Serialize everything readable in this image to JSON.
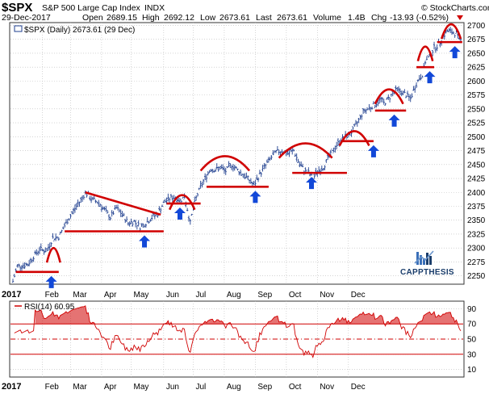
{
  "header": {
    "symbol": "$SPX",
    "name": "S&P 500 Large Cap Index",
    "exchange": "INDX",
    "watermark": "© StockCharts.com",
    "date": "29-Dec-2017",
    "open_label": "Open",
    "open": "2689.15",
    "high_label": "High",
    "high": "2692.12",
    "low_label": "Low",
    "low": "2673.61",
    "last_label": "Last",
    "last": "2673.61",
    "volume_label": "Volume",
    "volume": "1.4B",
    "chg_label": "Chg",
    "chg": "-13.93 (-0.52%)"
  },
  "legend_price": "$SPX (Daily) 2673.61 (29 Dec)",
  "legend_rsi": "RSI(14) 60.95",
  "logo_text": "CAPPTHESIS",
  "colors": {
    "line": "#d00000",
    "arrow": "#1248d8",
    "bars": "#1f3f8f",
    "grid": "#bbbbbb",
    "rsi_fill": "#d00000"
  },
  "chart_data": [
    {
      "type": "ohlc",
      "title": "$SPX (Daily)",
      "x_year_label": "2017",
      "months": [
        "Feb",
        "Mar",
        "Apr",
        "May",
        "Jun",
        "Jul",
        "Aug",
        "Sep",
        "Oct",
        "Nov",
        "Dec"
      ],
      "y_ticks": [
        2250,
        2275,
        2300,
        2325,
        2350,
        2375,
        2400,
        2425,
        2450,
        2475,
        2500,
        2525,
        2550,
        2575,
        2600,
        2625,
        2650,
        2675,
        2700
      ],
      "ylim": [
        2235,
        2705
      ],
      "anchors": [
        [
          0,
          2240
        ],
        [
          3,
          2268
        ],
        [
          10,
          2270
        ],
        [
          14,
          2285
        ],
        [
          18,
          2298
        ],
        [
          23,
          2295
        ],
        [
          27,
          2318
        ],
        [
          31,
          2320
        ],
        [
          35,
          2340
        ],
        [
          39,
          2358
        ],
        [
          43,
          2375
        ],
        [
          47,
          2390
        ],
        [
          49,
          2400
        ],
        [
          53,
          2388
        ],
        [
          58,
          2382
        ],
        [
          62,
          2368
        ],
        [
          66,
          2355
        ],
        [
          70,
          2372
        ],
        [
          74,
          2360
        ],
        [
          78,
          2345
        ],
        [
          82,
          2348
        ],
        [
          86,
          2338
        ],
        [
          90,
          2345
        ],
        [
          94,
          2355
        ],
        [
          98,
          2362
        ],
        [
          100,
          2372
        ],
        [
          103,
          2384
        ],
        [
          107,
          2390
        ],
        [
          110,
          2392
        ],
        [
          113,
          2385
        ],
        [
          116,
          2392
        ],
        [
          118,
          2370
        ],
        [
          120,
          2345
        ],
        [
          122,
          2372
        ],
        [
          124,
          2390
        ],
        [
          127,
          2410
        ],
        [
          131,
          2430
        ],
        [
          134,
          2443
        ],
        [
          137,
          2440
        ],
        [
          140,
          2445
        ],
        [
          144,
          2438
        ],
        [
          148,
          2450
        ],
        [
          152,
          2440
        ],
        [
          156,
          2432
        ],
        [
          160,
          2422
        ],
        [
          163,
          2412
        ],
        [
          166,
          2428
        ],
        [
          170,
          2445
        ],
        [
          174,
          2460
        ],
        [
          178,
          2472
        ],
        [
          182,
          2475
        ],
        [
          186,
          2470
        ],
        [
          190,
          2475
        ],
        [
          194,
          2450
        ],
        [
          197,
          2440
        ],
        [
          200,
          2435
        ],
        [
          203,
          2425
        ],
        [
          206,
          2438
        ],
        [
          210,
          2445
        ],
        [
          213,
          2460
        ],
        [
          216,
          2472
        ],
        [
          219,
          2485
        ],
        [
          222,
          2495
        ],
        [
          225,
          2500
        ],
        [
          228,
          2505
        ],
        [
          231,
          2515
        ],
        [
          234,
          2530
        ],
        [
          237,
          2545
        ],
        [
          240,
          2550
        ],
        [
          243,
          2555
        ],
        [
          246,
          2560
        ],
        [
          249,
          2568
        ],
        [
          251,
          2560
        ],
        [
          254,
          2568
        ],
        [
          257,
          2578
        ],
        [
          260,
          2585
        ],
        [
          263,
          2580
        ],
        [
          266,
          2575
        ],
        [
          269,
          2568
        ],
        [
          272,
          2590
        ],
        [
          275,
          2605
        ],
        [
          277,
          2612
        ],
        [
          279,
          2635
        ],
        [
          282,
          2645
        ],
        [
          285,
          2660
        ],
        [
          288,
          2665
        ],
        [
          291,
          2680
        ],
        [
          294,
          2690
        ],
        [
          297,
          2688
        ],
        [
          300,
          2685
        ],
        [
          302,
          2674
        ]
      ],
      "resistance_arcs": [
        {
          "from": 23,
          "to": 32,
          "peak": 2300
        },
        {
          "from": 106,
          "to": 123,
          "peak": 2395
        },
        {
          "from": 127,
          "to": 160,
          "peak": 2465
        },
        {
          "from": 180,
          "to": 216,
          "peak": 2488
        },
        {
          "from": 221,
          "to": 241,
          "peak": 2510
        },
        {
          "from": 245,
          "to": 264,
          "peak": 2585
        },
        {
          "from": 274,
          "to": 284,
          "peak": 2662
        },
        {
          "from": 290,
          "to": 303,
          "peak": 2702
        }
      ],
      "wedge_line": {
        "from": 49,
        "to": 100,
        "y_from": 2400,
        "y_to": 2360
      },
      "support_lines": [
        {
          "from": 2,
          "to": 31,
          "y": 2257
        },
        {
          "from": 35,
          "to": 102,
          "y": 2330
        },
        {
          "from": 104,
          "to": 127,
          "y": 2380
        },
        {
          "from": 131,
          "to": 173,
          "y": 2410
        },
        {
          "from": 189,
          "to": 226,
          "y": 2435
        },
        {
          "from": 223,
          "to": 244,
          "y": 2492
        },
        {
          "from": 245,
          "to": 266,
          "y": 2547
        },
        {
          "from": 273,
          "to": 285,
          "y": 2625
        },
        {
          "from": 287,
          "to": 304,
          "y": 2670
        }
      ],
      "arrows": [
        26,
        89,
        113,
        164,
        202,
        244,
        258,
        282,
        299
      ]
    },
    {
      "type": "line",
      "title": "RSI(14)",
      "y_ticks": [
        10,
        30,
        50,
        70,
        90
      ],
      "ylim": [
        0,
        100
      ],
      "levels": [
        70,
        50,
        30
      ],
      "last": 60.95
    }
  ]
}
